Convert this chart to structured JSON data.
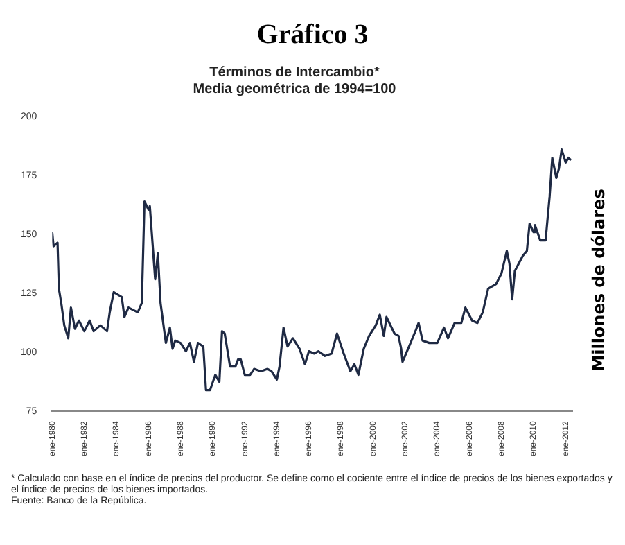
{
  "chart_data": {
    "type": "line",
    "title": "Términos de Intercambio*",
    "subtitle": "Media geométrica de 1994=100",
    "y2label": "Millones de dólares",
    "annotations": [
      "Gráfico 3",
      "* Calculado con base en el índice de precios del productor. Se define como el cociente entre el índice de precios de los bienes exportados y el índice de precios de los bienes importados.",
      "Fuente: Banco de la República."
    ],
    "xlim": [
      "1980-01",
      "2012-06"
    ],
    "xticks": [
      {
        "value": "1980-01",
        "label": "ene-1980"
      },
      {
        "value": "1982-01",
        "label": "ene-1982"
      },
      {
        "value": "1984-01",
        "label": "ene-1984"
      },
      {
        "value": "1986-01",
        "label": "ene-1986"
      },
      {
        "value": "1988-01",
        "label": "ene-1988"
      },
      {
        "value": "1990-01",
        "label": "ene-1990"
      },
      {
        "value": "1992-01",
        "label": "ene-1992"
      },
      {
        "value": "1994-01",
        "label": "ene-1994"
      },
      {
        "value": "1996-01",
        "label": "ene-1996"
      },
      {
        "value": "1998-01",
        "label": "ene-1998"
      },
      {
        "value": "2000-01",
        "label": "ene-2000"
      },
      {
        "value": "2002-01",
        "label": "ene-2002"
      },
      {
        "value": "2004-01",
        "label": "ene-2004"
      },
      {
        "value": "2006-01",
        "label": "ene-2006"
      },
      {
        "value": "2008-01",
        "label": "ene-2008"
      },
      {
        "value": "2010-01",
        "label": "ene-2010"
      },
      {
        "value": "2012-01",
        "label": "ene-2012"
      }
    ],
    "ylim": [
      75,
      200
    ],
    "yticks": [
      75,
      100,
      125,
      150,
      175,
      200
    ],
    "grid": false,
    "legend": false,
    "marker": "none",
    "line_style": "solid",
    "x": [
      "1980-01",
      "1980-02",
      "1980-05",
      "1980-06",
      "1980-08",
      "1980-10",
      "1981-01",
      "1981-03",
      "1981-06",
      "1981-09",
      "1982-01",
      "1982-05",
      "1982-08",
      "1983-01",
      "1983-06",
      "1983-08",
      "1983-11",
      "1984-05",
      "1984-07",
      "1984-10",
      "1985-05",
      "1985-08",
      "1985-10",
      "1986-01",
      "1986-02",
      "1986-06",
      "1986-08",
      "1986-10",
      "1987-02",
      "1987-05",
      "1987-07",
      "1987-09",
      "1988-01",
      "1988-05",
      "1988-08",
      "1988-11",
      "1989-02",
      "1989-06",
      "1989-08",
      "1989-11",
      "1990-03",
      "1990-06",
      "1990-08",
      "1990-10",
      "1991-02",
      "1991-06",
      "1991-08",
      "1991-10",
      "1992-01",
      "1992-05",
      "1992-08",
      "1993-01",
      "1993-06",
      "1993-09",
      "1994-01",
      "1994-03",
      "1994-06",
      "1994-09",
      "1995-01",
      "1995-06",
      "1995-10",
      "1996-01",
      "1996-05",
      "1996-08",
      "1997-01",
      "1997-06",
      "1997-10",
      "1998-03",
      "1998-08",
      "1998-11",
      "1999-02",
      "1999-06",
      "1999-10",
      "2000-03",
      "2000-06",
      "2000-09",
      "2000-11",
      "2001-05",
      "2001-08",
      "2001-10",
      "2001-11",
      "2002-05",
      "2002-09",
      "2002-11",
      "2003-02",
      "2003-07",
      "2004-01",
      "2004-06",
      "2004-09",
      "2005-02",
      "2005-07",
      "2005-10",
      "2006-03",
      "2006-07",
      "2006-11",
      "2007-03",
      "2007-09",
      "2008-01",
      "2008-05",
      "2008-07",
      "2008-09",
      "2008-11",
      "2009-05",
      "2009-08",
      "2009-10",
      "2010-01",
      "2010-02",
      "2010-06",
      "2010-10",
      "2011-01",
      "2011-03",
      "2011-06",
      "2011-08",
      "2011-10",
      "2012-01",
      "2012-03",
      "2012-05"
    ],
    "series": [
      {
        "color": "#1f2a44",
        "values": [
          151,
          145,
          146.5,
          127,
          120,
          111.5,
          106,
          119,
          110,
          113.5,
          109,
          113.5,
          109,
          111.5,
          109,
          117,
          125.5,
          123.5,
          115,
          119,
          117,
          121,
          164,
          160.5,
          162,
          131,
          142,
          121,
          104,
          110.5,
          101.5,
          105,
          104,
          100.5,
          104,
          96,
          104,
          102.5,
          84,
          84,
          90.5,
          87.5,
          109,
          108,
          94,
          94,
          97,
          97,
          90.5,
          90.5,
          93,
          92,
          93,
          92,
          88.5,
          94,
          110.5,
          102.5,
          106,
          101.5,
          95,
          100.5,
          99.5,
          100.5,
          98.5,
          99.5,
          108,
          99.5,
          92,
          95,
          90.5,
          101.5,
          107,
          111.5,
          116,
          107,
          115,
          108,
          107,
          101.5,
          96,
          104,
          109.5,
          112.5,
          105,
          104,
          104,
          110.5,
          106,
          112.5,
          112.5,
          119,
          113.5,
          112.5,
          117,
          127,
          129,
          133.5,
          143,
          137.5,
          122.5,
          134.5,
          141,
          143,
          154.5,
          151,
          154,
          147.5,
          147.5,
          166,
          182.5,
          174,
          178,
          186,
          180.5,
          182.5,
          181.5
        ]
      }
    ]
  }
}
